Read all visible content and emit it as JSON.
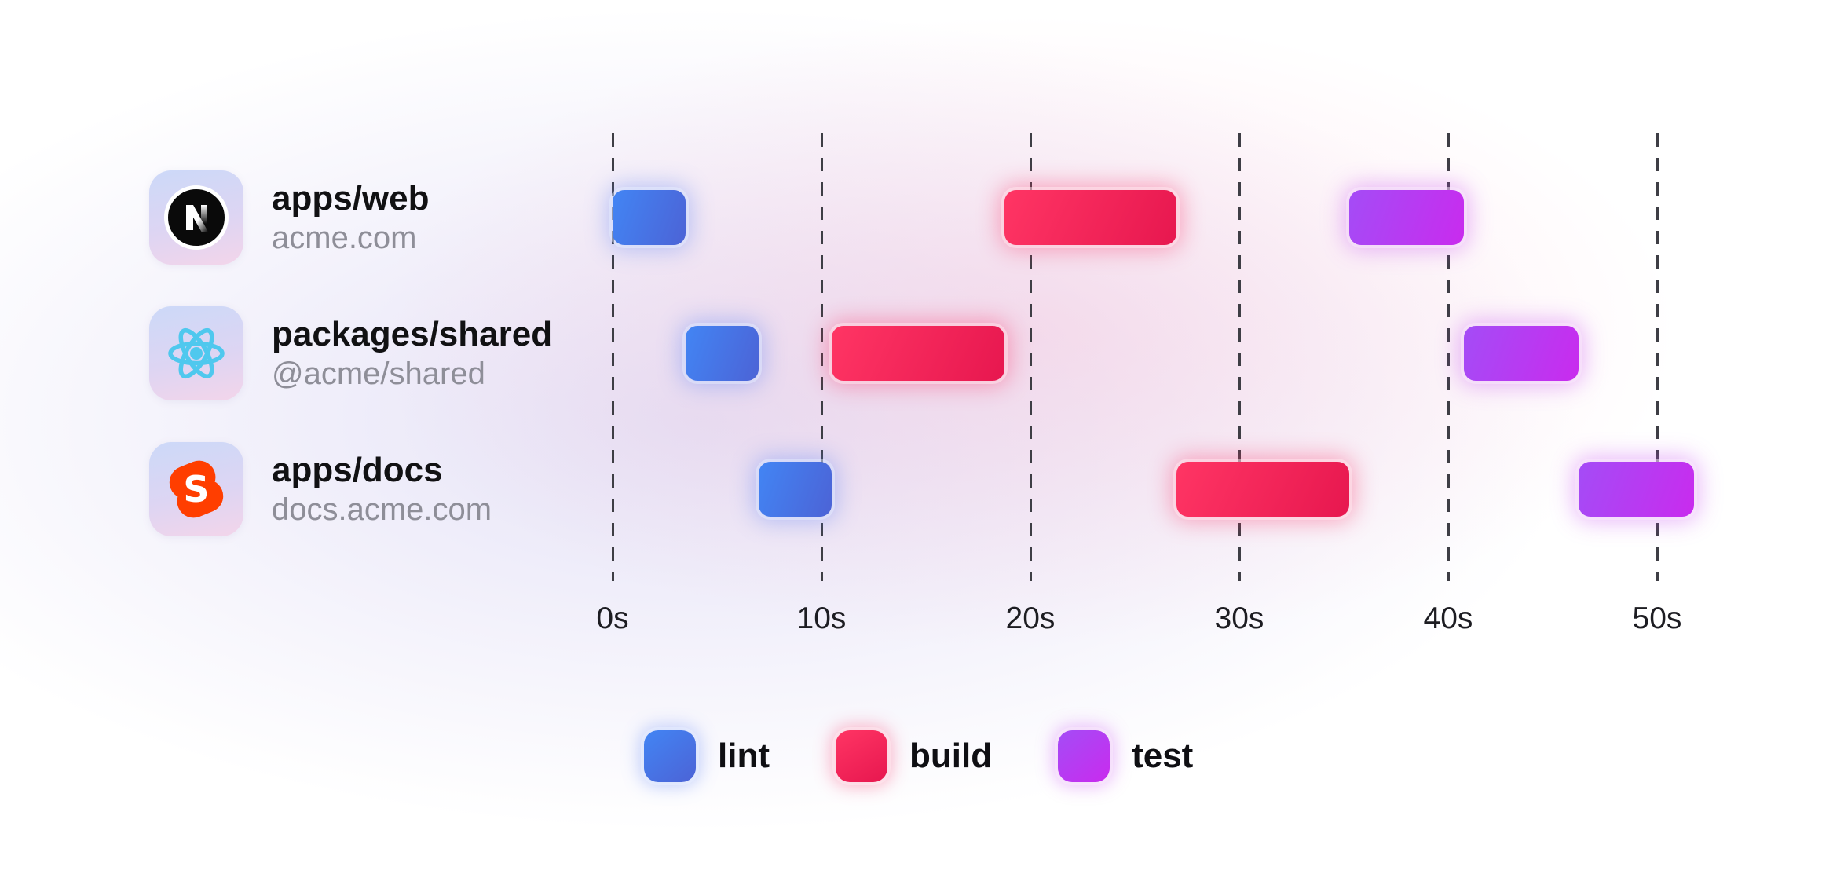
{
  "projects": [
    {
      "name": "apps/web",
      "domain": "acme.com",
      "icon": "nextjs-icon"
    },
    {
      "name": "packages/shared",
      "domain": "@acme/shared",
      "icon": "react-icon"
    },
    {
      "name": "apps/docs",
      "domain": "docs.acme.com",
      "icon": "svelte-icon"
    }
  ],
  "axis": {
    "tick_labels": [
      "0s",
      "10s",
      "20s",
      "30s",
      "40s",
      "50s"
    ],
    "tick_seconds": [
      0,
      10,
      20,
      30,
      40,
      50
    ]
  },
  "legend": {
    "items": [
      {
        "label": "lint",
        "key": "lint"
      },
      {
        "label": "build",
        "key": "build"
      },
      {
        "label": "test",
        "key": "test"
      }
    ]
  },
  "colors": {
    "lint": {
      "from": "#4285F4",
      "to": "#4C63D6"
    },
    "build": {
      "from": "#FF3564",
      "to": "#E7174F"
    },
    "test": {
      "from": "#A44CF6",
      "to": "#C92BEE"
    }
  },
  "icon_colors": {
    "nextjs": "#0a0a0a",
    "react": "#4FC8EE",
    "svelte": "#FF3E00"
  },
  "chart_data": {
    "type": "gantt",
    "title": "",
    "x_unit": "seconds",
    "x_ticks": [
      0,
      10,
      20,
      30,
      40,
      50
    ],
    "x_tick_labels": [
      "0s",
      "10s",
      "20s",
      "30s",
      "40s",
      "50s"
    ],
    "x_range": [
      0,
      52
    ],
    "grid": "dashed-vertical",
    "legend_position": "bottom",
    "legend_entries": [
      "lint",
      "build",
      "test"
    ],
    "rows": [
      {
        "label": "apps/web",
        "sublabel": "acme.com",
        "tasks": [
          {
            "task": "lint",
            "start_s": 0,
            "end_s": 3.5
          },
          {
            "task": "build",
            "start_s": 18.75,
            "end_s": 27
          },
          {
            "task": "test",
            "start_s": 35.25,
            "end_s": 40.75
          }
        ]
      },
      {
        "label": "packages/shared",
        "sublabel": "@acme/shared",
        "tasks": [
          {
            "task": "lint",
            "start_s": 3.5,
            "end_s": 7
          },
          {
            "task": "build",
            "start_s": 10.5,
            "end_s": 18.75
          },
          {
            "task": "test",
            "start_s": 40.75,
            "end_s": 46.25
          }
        ]
      },
      {
        "label": "apps/docs",
        "sublabel": "docs.acme.com",
        "tasks": [
          {
            "task": "lint",
            "start_s": 7,
            "end_s": 10.5
          },
          {
            "task": "build",
            "start_s": 27,
            "end_s": 35.25
          },
          {
            "task": "test",
            "start_s": 46.25,
            "end_s": 51.75
          }
        ]
      }
    ]
  }
}
